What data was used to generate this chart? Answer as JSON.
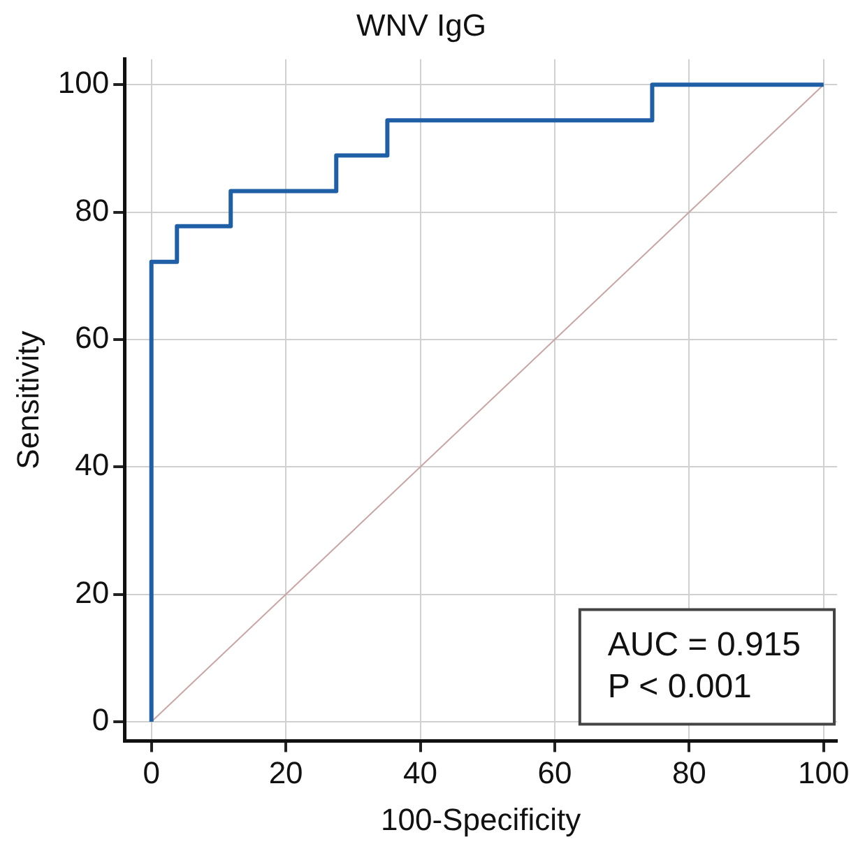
{
  "chart_data": {
    "type": "step",
    "title": "WNV IgG",
    "xlabel": "100-Specificity",
    "ylabel": "Sensitivity",
    "series": [
      {
        "type": "step",
        "color": "#1f5fa6",
        "x": [
          0,
          0,
          3.8,
          11.8,
          27.5,
          35.1,
          74.5,
          100
        ],
        "values": [
          0,
          72.2,
          77.8,
          83.3,
          88.9,
          94.4,
          100,
          100
        ]
      },
      {
        "type": "line",
        "color": "#c9a4a4",
        "x": [
          0,
          100
        ],
        "values": [
          0,
          100
        ]
      }
    ],
    "xlim": [
      -4,
      102
    ],
    "ylim": [
      -3,
      104
    ],
    "xticks": [
      0,
      20,
      40,
      60,
      80,
      100
    ],
    "yticks": [
      0,
      20,
      40,
      60,
      80,
      100
    ],
    "grid": true,
    "legend": false,
    "marker": "none",
    "annotations": [
      "AUC = 0.915",
      "P < 0.001"
    ]
  }
}
